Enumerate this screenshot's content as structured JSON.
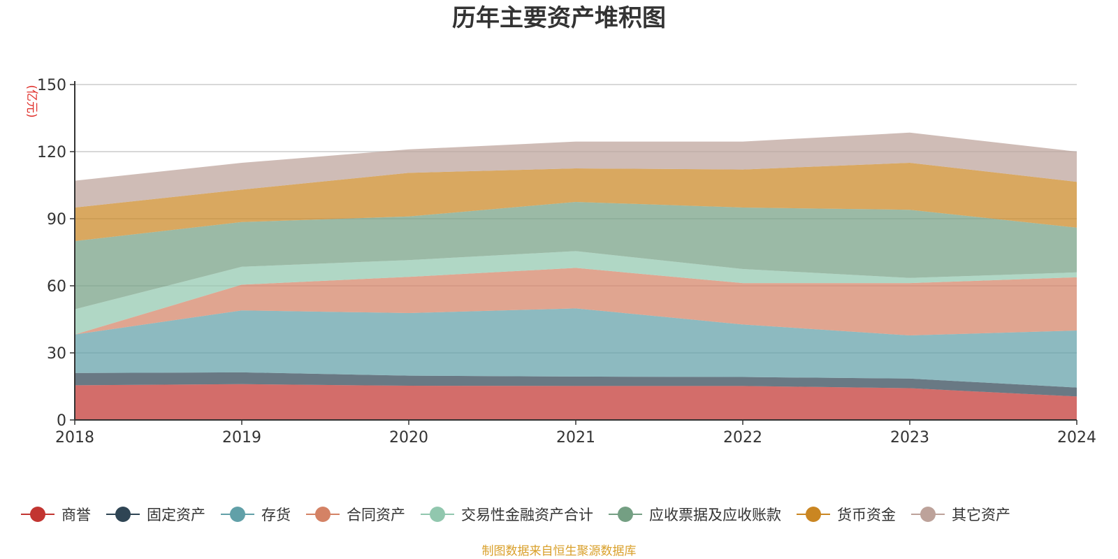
{
  "chart_data": {
    "type": "area",
    "stacked": true,
    "title": "历年主要资产堆积图",
    "yunit": "(亿元)",
    "categories": [
      "2018",
      "2019",
      "2020",
      "2021",
      "2022",
      "2023",
      "2024"
    ],
    "yticks": [
      "0",
      "30",
      "60",
      "90",
      "120",
      "150"
    ],
    "ylim": [
      0,
      150
    ],
    "grid": true,
    "legend_position": "bottom",
    "series": [
      {
        "name": "商誉",
        "color": "#c23531",
        "values": [
          15.5,
          16,
          15.3,
          15.2,
          15.2,
          14.2,
          10.5
        ]
      },
      {
        "name": "固定资产",
        "color": "#2f4554",
        "values": [
          5.5,
          5.3,
          4.5,
          4.2,
          4,
          4.3,
          4
        ]
      },
      {
        "name": "存货",
        "color": "#61a0a8",
        "values": [
          17.2,
          27.7,
          28,
          30.5,
          23.5,
          19.3,
          25.5
        ]
      },
      {
        "name": "合同资产",
        "color": "#d48265",
        "values": [
          0,
          11.5,
          16.2,
          18.1,
          18.5,
          23.4,
          23.8
        ]
      },
      {
        "name": "交易性金融资产合计",
        "color": "#91c7ae",
        "values": [
          11.3,
          8,
          7.5,
          7.5,
          6.3,
          2.3,
          2.2
        ]
      },
      {
        "name": "应收票据及应收账款",
        "color": "#749f83",
        "values": [
          30.5,
          20,
          19.5,
          22,
          27.5,
          30.5,
          20
        ]
      },
      {
        "name": "货币资金",
        "color": "#ca8622",
        "values": [
          15,
          14.5,
          19.5,
          15,
          17,
          21,
          20.5
        ]
      },
      {
        "name": "其它资产",
        "color": "#bda29a",
        "values": [
          12,
          12,
          10.5,
          12,
          12.5,
          13.5,
          13.5
        ]
      }
    ]
  },
  "source_note": "制图数据来自恒生聚源数据库"
}
